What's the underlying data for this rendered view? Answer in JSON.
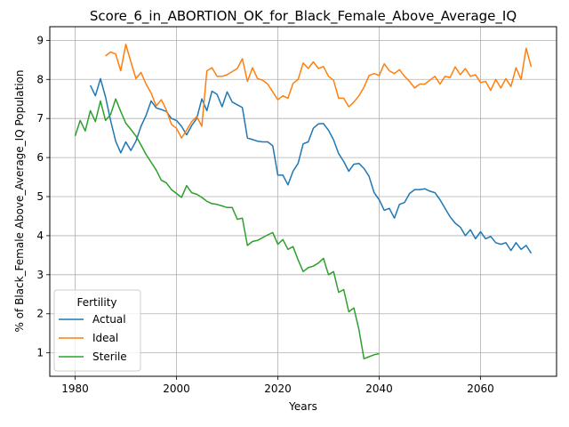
{
  "chart_data": {
    "type": "line",
    "title": "Score_6_in_ABORTION_OK_for_Black_Female_Above_Average_IQ",
    "xlabel": "Years",
    "ylabel": "% of Black_Female Above_Average_IQ Population",
    "xlim": [
      1975,
      2075
    ],
    "ylim": [
      0.4,
      9.35
    ],
    "xticks": [
      1980,
      2000,
      2020,
      2040,
      2060
    ],
    "yticks": [
      1,
      2,
      3,
      4,
      5,
      6,
      7,
      8,
      9
    ],
    "grid": true,
    "legend": {
      "title": "Fertility",
      "position": "lower left"
    },
    "series": [
      {
        "name": "Actual",
        "color": "#1f77b4",
        "x": [
          1983,
          1984,
          1985,
          1986,
          1987,
          1988,
          1989,
          1990,
          1991,
          1992,
          1993,
          1994,
          1995,
          1996,
          1997,
          1998,
          1999,
          2000,
          2001,
          2002,
          2003,
          2004,
          2005,
          2006,
          2007,
          2008,
          2009,
          2010,
          2011,
          2012,
          2013,
          2014,
          2015,
          2016,
          2017,
          2018,
          2019,
          2020,
          2021,
          2022,
          2023,
          2024,
          2025,
          2026,
          2027,
          2028,
          2029,
          2030,
          2031,
          2032,
          2033,
          2034,
          2035,
          2036,
          2037,
          2038,
          2039,
          2040,
          2041,
          2042,
          2043,
          2044,
          2045,
          2046,
          2047,
          2048,
          2049,
          2050,
          2051,
          2052,
          2053,
          2054,
          2055,
          2056,
          2057,
          2058,
          2059,
          2060,
          2061,
          2062,
          2063,
          2064,
          2065,
          2066,
          2067,
          2068,
          2069,
          2070
        ],
        "y": [
          7.85,
          7.58,
          8.02,
          7.55,
          6.95,
          6.42,
          6.12,
          6.4,
          6.18,
          6.42,
          6.8,
          7.08,
          7.45,
          7.27,
          7.23,
          7.18,
          7.0,
          6.95,
          6.8,
          6.58,
          6.82,
          7.0,
          7.5,
          7.2,
          7.7,
          7.62,
          7.3,
          7.68,
          7.42,
          7.35,
          7.28,
          6.5,
          6.46,
          6.42,
          6.4,
          6.4,
          6.3,
          5.55,
          5.55,
          5.3,
          5.65,
          5.85,
          6.35,
          6.4,
          6.75,
          6.86,
          6.87,
          6.7,
          6.45,
          6.1,
          5.9,
          5.65,
          5.83,
          5.85,
          5.72,
          5.52,
          5.1,
          4.92,
          4.65,
          4.7,
          4.45,
          4.8,
          4.85,
          5.08,
          5.18,
          5.18,
          5.2,
          5.14,
          5.1,
          4.92,
          4.7,
          4.48,
          4.32,
          4.22,
          4.0,
          4.15,
          3.92,
          4.1,
          3.92,
          3.98,
          3.82,
          3.78,
          3.82,
          3.62,
          3.82,
          3.65,
          3.75,
          3.55
        ]
      },
      {
        "name": "Ideal",
        "color": "#ff7f0e",
        "x": [
          1986,
          1987,
          1988,
          1989,
          1990,
          1991,
          1992,
          1993,
          1994,
          1995,
          1996,
          1997,
          1998,
          1999,
          2000,
          2001,
          2002,
          2003,
          2004,
          2005,
          2006,
          2007,
          2008,
          2009,
          2010,
          2011,
          2012,
          2013,
          2014,
          2015,
          2016,
          2017,
          2018,
          2019,
          2020,
          2021,
          2022,
          2023,
          2024,
          2025,
          2026,
          2027,
          2028,
          2029,
          2030,
          2031,
          2032,
          2033,
          2034,
          2035,
          2036,
          2037,
          2038,
          2039,
          2040,
          2041,
          2042,
          2043,
          2044,
          2045,
          2046,
          2047,
          2048,
          2049,
          2050,
          2051,
          2052,
          2053,
          2054,
          2055,
          2056,
          2057,
          2058,
          2059,
          2060,
          2061,
          2062,
          2063,
          2064,
          2065,
          2066,
          2067,
          2068,
          2069,
          2070
        ],
        "y": [
          8.6,
          8.7,
          8.65,
          8.22,
          8.9,
          8.45,
          8.02,
          8.18,
          7.88,
          7.65,
          7.32,
          7.48,
          7.22,
          6.85,
          6.75,
          6.5,
          6.7,
          6.92,
          7.05,
          6.8,
          8.22,
          8.3,
          8.08,
          8.08,
          8.12,
          8.2,
          8.28,
          8.53,
          7.95,
          8.3,
          8.02,
          7.98,
          7.88,
          7.68,
          7.48,
          7.58,
          7.52,
          7.9,
          8.0,
          8.42,
          8.28,
          8.45,
          8.28,
          8.33,
          8.08,
          7.98,
          7.52,
          7.52,
          7.3,
          7.42,
          7.58,
          7.8,
          8.1,
          8.15,
          8.1,
          8.4,
          8.22,
          8.15,
          8.25,
          8.08,
          7.95,
          7.78,
          7.88,
          7.88,
          7.98,
          8.08,
          7.88,
          8.08,
          8.05,
          8.32,
          8.12,
          8.28,
          8.08,
          8.12,
          7.92,
          7.95,
          7.72,
          8.0,
          7.78,
          8.02,
          7.82,
          8.3,
          8.0,
          8.8,
          8.32
        ]
      },
      {
        "name": "Sterile",
        "color": "#2ca02c",
        "x": [
          1980,
          1981,
          1982,
          1983,
          1984,
          1985,
          1986,
          1987,
          1988,
          1989,
          1990,
          1991,
          1992,
          1993,
          1994,
          1995,
          1996,
          1997,
          1998,
          1999,
          2000,
          2001,
          2002,
          2003,
          2004,
          2005,
          2006,
          2007,
          2008,
          2009,
          2010,
          2011,
          2012,
          2013,
          2014,
          2015,
          2016,
          2017,
          2018,
          2019,
          2020,
          2021,
          2022,
          2023,
          2024,
          2025,
          2026,
          2027,
          2028,
          2029,
          2030,
          2031,
          2032,
          2033,
          2034,
          2035,
          2036,
          2037,
          2038,
          2039,
          2040
        ],
        "y": [
          6.55,
          6.95,
          6.68,
          7.2,
          6.92,
          7.45,
          6.95,
          7.1,
          7.5,
          7.18,
          6.88,
          6.72,
          6.55,
          6.32,
          6.08,
          5.88,
          5.68,
          5.42,
          5.35,
          5.18,
          5.08,
          4.98,
          5.28,
          5.1,
          5.06,
          4.98,
          4.88,
          4.82,
          4.8,
          4.76,
          4.72,
          4.72,
          4.42,
          4.45,
          3.75,
          3.85,
          3.88,
          3.95,
          4.02,
          4.08,
          3.78,
          3.9,
          3.65,
          3.72,
          3.38,
          3.08,
          3.18,
          3.22,
          3.3,
          3.42,
          3.0,
          3.08,
          2.55,
          2.62,
          2.05,
          2.15,
          1.6,
          0.85,
          0.9,
          0.95,
          0.98
        ]
      }
    ]
  }
}
